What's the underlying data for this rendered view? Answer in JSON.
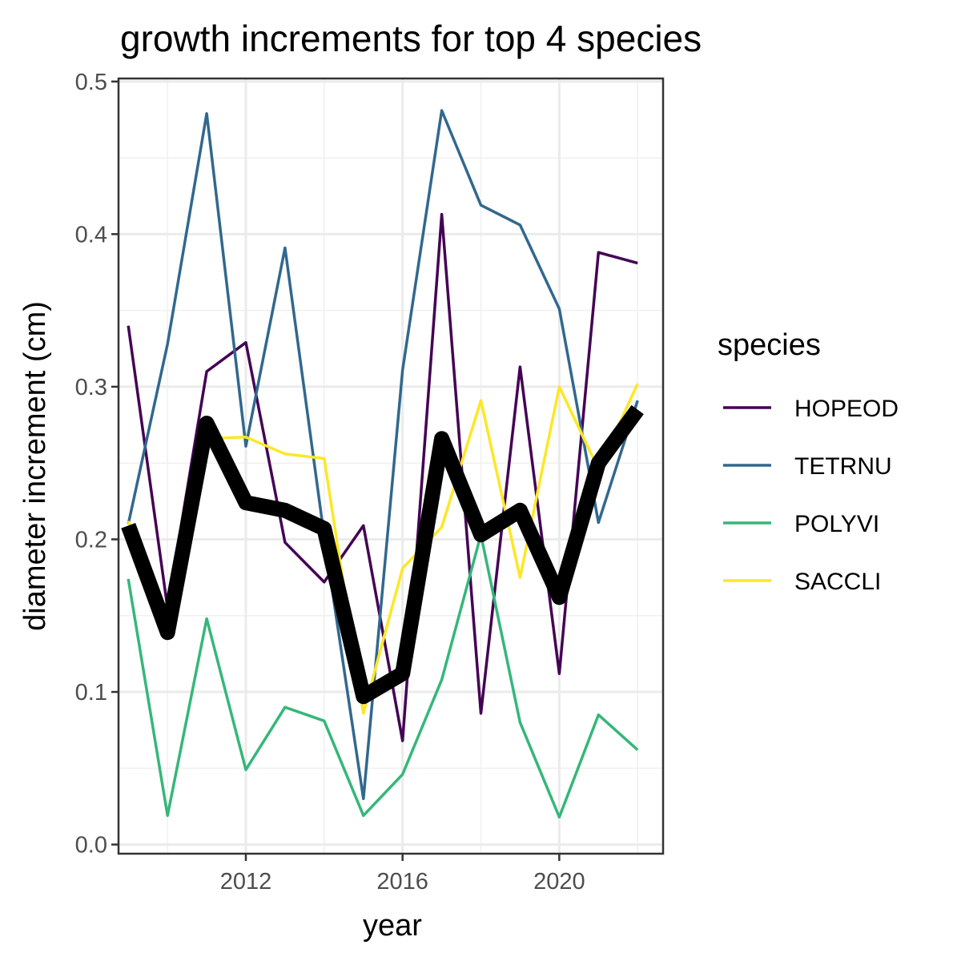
{
  "chart_data": {
    "type": "line",
    "title": "growth increments for top 4 species",
    "xlabel": "year",
    "ylabel": "diameter increment (cm)",
    "xlim": [
      2008.75,
      2022.65
    ],
    "ylim": [
      -0.006,
      0.502
    ],
    "x_ticks": [
      2012,
      2016,
      2020
    ],
    "x_tick_labels": [
      "2012",
      "2016",
      "2020"
    ],
    "x_minor_ticks": [
      2010,
      2014,
      2018,
      2022
    ],
    "y_ticks": [
      0.0,
      0.1,
      0.2,
      0.3,
      0.4,
      0.5
    ],
    "y_tick_labels": [
      "0.0",
      "0.1",
      "0.2",
      "0.3",
      "0.4",
      "0.5"
    ],
    "y_minor_ticks": [
      0.05,
      0.15,
      0.25,
      0.35,
      0.45
    ],
    "grid": true,
    "legend_title": "species",
    "legend_position": "right",
    "x": [
      2009,
      2010,
      2011,
      2012,
      2013,
      2014,
      2015,
      2016,
      2017,
      2018,
      2019,
      2020,
      2021,
      2022
    ],
    "series": [
      {
        "name": "HOPEOD",
        "color": "#440154",
        "values": [
          0.34,
          0.155,
          0.31,
          0.329,
          0.198,
          0.172,
          0.209,
          0.068,
          0.413,
          0.086,
          0.313,
          0.112,
          0.388,
          0.381
        ]
      },
      {
        "name": "TETRNU",
        "color": "#31688e",
        "values": [
          0.21,
          0.328,
          0.479,
          0.261,
          0.391,
          0.202,
          0.03,
          0.311,
          0.481,
          0.419,
          0.406,
          0.351,
          0.211,
          0.291
        ]
      },
      {
        "name": "POLYVI",
        "color": "#35b779",
        "values": [
          0.174,
          0.019,
          0.148,
          0.049,
          0.09,
          0.081,
          0.019,
          0.046,
          0.108,
          0.203,
          0.08,
          0.018,
          0.085,
          0.062
        ]
      },
      {
        "name": "SACCLI",
        "color": "#fde725",
        "values": [
          0.212,
          0.142,
          0.266,
          0.267,
          0.256,
          0.253,
          0.086,
          0.181,
          0.208,
          0.291,
          0.175,
          0.3,
          0.246,
          0.302
        ]
      }
    ],
    "mean_line": {
      "color": "#000000",
      "values": [
        0.209,
        0.139,
        0.276,
        0.224,
        0.219,
        0.207,
        0.097,
        0.112,
        0.266,
        0.203,
        0.219,
        0.162,
        0.25,
        0.285
      ]
    }
  }
}
